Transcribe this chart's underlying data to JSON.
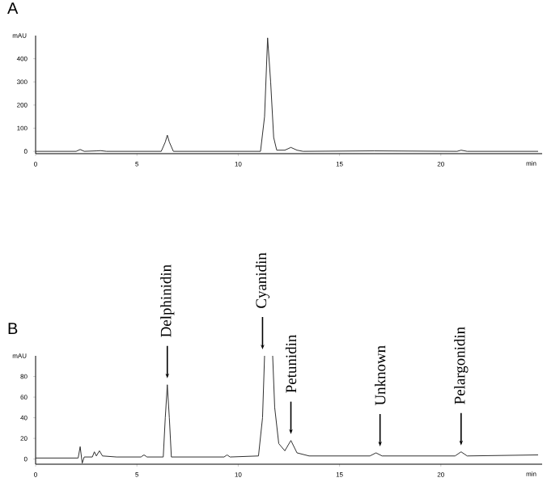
{
  "chart_data": [
    {
      "type": "line",
      "title": "A",
      "xlabel": "min",
      "ylabel": "mAU",
      "xlim": [
        0,
        25
      ],
      "ylim": [
        -10,
        500
      ],
      "xticks": [
        0,
        5,
        10,
        15,
        20
      ],
      "yticks": [
        0,
        100,
        200,
        300,
        400
      ],
      "x": [
        0,
        2.0,
        2.2,
        2.4,
        3.0,
        3.2,
        3.5,
        6.2,
        6.4,
        6.5,
        6.6,
        6.8,
        11.1,
        11.3,
        11.45,
        11.6,
        11.75,
        11.9,
        12.3,
        12.6,
        12.9,
        13.2,
        16.7,
        20.8,
        21.0,
        21.3,
        24.8
      ],
      "series": [
        {
          "color": "#303030",
          "values": [
            0,
            0,
            8,
            0,
            2,
            3,
            0,
            0,
            40,
            70,
            40,
            0,
            0,
            150,
            490,
            300,
            60,
            5,
            5,
            17,
            5,
            0,
            2,
            0,
            5,
            0,
            0
          ]
        }
      ]
    },
    {
      "type": "line",
      "title": "B",
      "xlabel": "min",
      "ylabel": "mAU",
      "xlim": [
        0,
        25
      ],
      "ylim": [
        -5,
        100
      ],
      "xticks": [
        0,
        5,
        10,
        15,
        20
      ],
      "yticks": [
        0,
        20,
        40,
        60,
        80
      ],
      "x": [
        0,
        2.1,
        2.2,
        2.3,
        2.4,
        2.8,
        2.9,
        3.0,
        3.15,
        3.3,
        4.0,
        5.2,
        5.35,
        5.5,
        6.3,
        6.4,
        6.5,
        6.6,
        6.7,
        9.3,
        9.45,
        9.6,
        11.0,
        11.2,
        11.3,
        11.5,
        11.7,
        11.8,
        12.0,
        12.3,
        12.6,
        12.9,
        13.5,
        16.5,
        16.8,
        17.1,
        20.7,
        21.0,
        21.3,
        24.8
      ],
      "series": [
        {
          "color": "#303030",
          "values": [
            1,
            1,
            12,
            -4,
            2,
            2,
            7,
            3,
            8,
            3,
            2,
            2,
            4,
            2,
            2,
            40,
            72,
            40,
            2,
            2,
            4,
            2,
            3,
            40,
            100,
            null,
            100,
            50,
            15,
            8,
            18,
            6,
            3,
            3,
            6,
            3,
            3,
            7,
            3,
            4
          ]
        }
      ],
      "annotations": [
        {
          "text": "Delphinidin",
          "x": 6.5,
          "y": 72
        },
        {
          "text": "Cyanidin",
          "x": 11.2,
          "y": 100
        },
        {
          "text": "Petunidin",
          "x": 12.6,
          "y": 18
        },
        {
          "text": "Unknown",
          "x": 17,
          "y": 6
        },
        {
          "text": "Pelargonidin",
          "x": 21,
          "y": 7
        }
      ]
    }
  ]
}
